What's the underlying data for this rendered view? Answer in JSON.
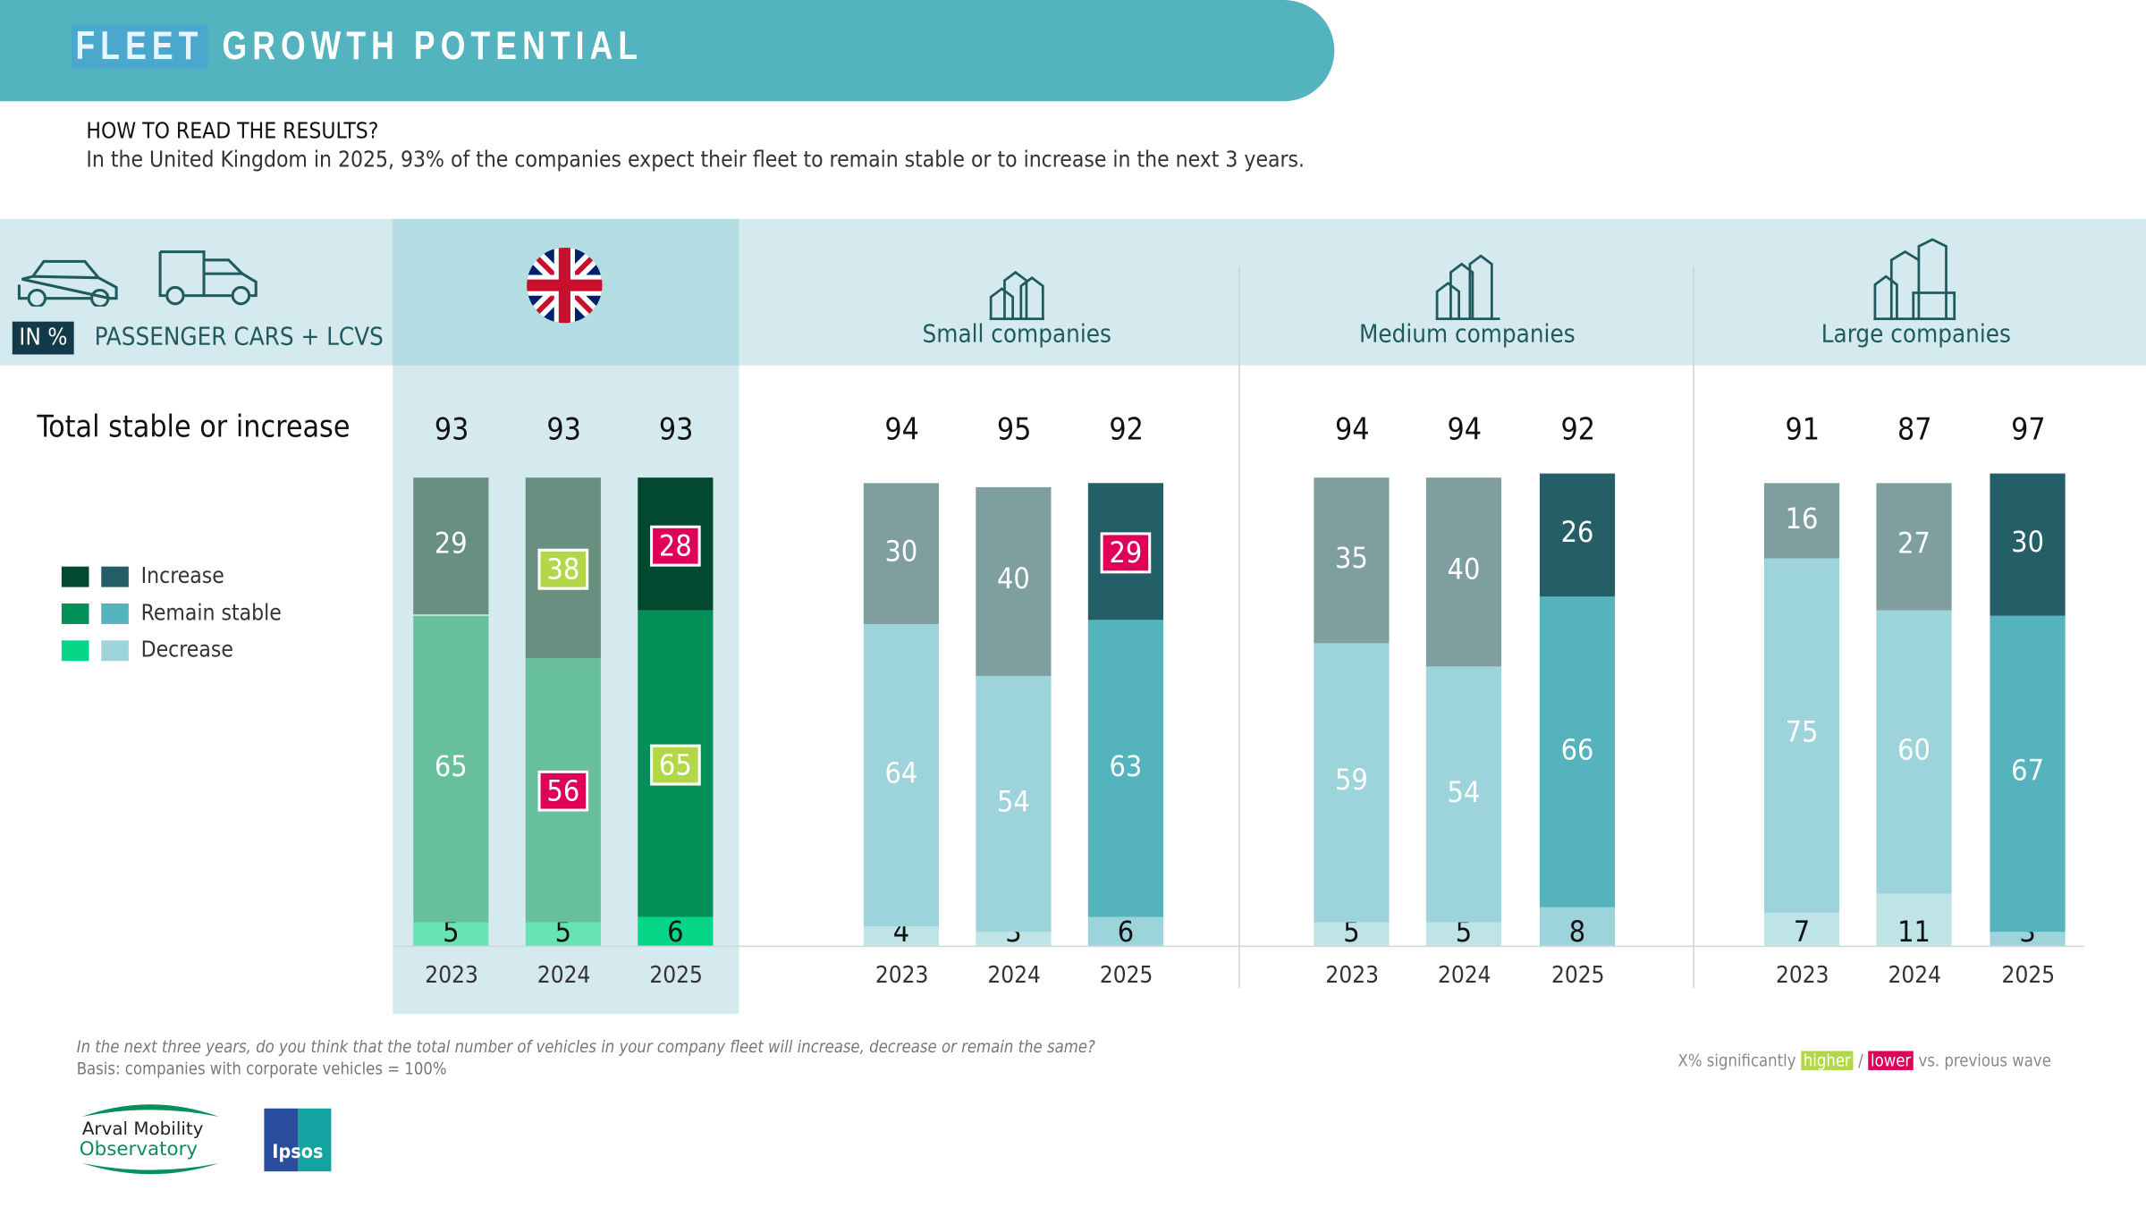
{
  "header": {
    "title_highlight": "FLEET",
    "title_rest": "GROWTH POTENTIAL"
  },
  "how_to_read": {
    "title": "HOW TO READ THE RESULTS?",
    "text": "In the United Kingdom in 2025, 93% of the companies expect their fleet to remain stable or to increase in the next 3 years."
  },
  "unit_badge": "IN %",
  "vehicle_label": "PASSENGER CARS + LCVS",
  "total_label": "Total stable or increase",
  "legend": [
    "Increase",
    "Remain stable",
    "Decrease"
  ],
  "colors": {
    "uk_prev": {
      "increase": "#688f80",
      "stable": "#68bf9d",
      "decrease": "#68e3b5"
    },
    "uk_current": {
      "increase": "#02492f",
      "stable": "#028f58",
      "decrease": "#04d586"
    },
    "co_prev": {
      "increase": "#7f9ea0",
      "stable": "#9dd3db",
      "decrease": "#bfe4e7"
    },
    "co_current": {
      "increase": "#245e66",
      "stable": "#55b3bd",
      "decrease": "#9dd3db"
    },
    "higher": "#b2d84a",
    "lower": "#e0005a"
  },
  "chart_data": {
    "type": "bar",
    "stacked": true,
    "categories": [
      "2023",
      "2024",
      "2025"
    ],
    "groups": [
      {
        "name": "",
        "icon": "uk-flag-icon",
        "palette": "uk",
        "totals": [
          93,
          93,
          93
        ],
        "increase": [
          29,
          38,
          28
        ],
        "stable": [
          65,
          56,
          65
        ],
        "decrease": [
          5,
          5,
          6
        ],
        "sig_increase": [
          "",
          "higher",
          "lower"
        ],
        "sig_stable": [
          "",
          "lower",
          "higher"
        ]
      },
      {
        "name": "Small companies",
        "icon": "small-buildings-icon",
        "palette": "co",
        "totals": [
          94,
          95,
          92
        ],
        "increase": [
          30,
          40,
          29
        ],
        "stable": [
          64,
          54,
          63
        ],
        "decrease": [
          4,
          3,
          6
        ],
        "sig_increase": [
          "",
          "",
          "lower"
        ],
        "sig_stable": [
          "",
          "",
          ""
        ]
      },
      {
        "name": "Medium companies",
        "icon": "medium-buildings-icon",
        "palette": "co",
        "totals": [
          94,
          94,
          92
        ],
        "increase": [
          35,
          40,
          26
        ],
        "stable": [
          59,
          54,
          66
        ],
        "decrease": [
          5,
          5,
          8
        ],
        "sig_increase": [
          "",
          "",
          ""
        ],
        "sig_stable": [
          "",
          "",
          ""
        ]
      },
      {
        "name": "Large companies",
        "icon": "large-buildings-icon",
        "palette": "co",
        "totals": [
          91,
          87,
          97
        ],
        "increase": [
          16,
          27,
          30
        ],
        "stable": [
          75,
          60,
          67
        ],
        "decrease": [
          7,
          11,
          3
        ],
        "sig_increase": [
          "",
          "",
          ""
        ],
        "sig_stable": [
          "",
          "",
          ""
        ]
      }
    ]
  },
  "footer": {
    "question": "In the next three years, do you think that the total number of vehicles in your company fleet will increase, decrease or remain the same?",
    "basis": "Basis: companies with corporate vehicles = 100%",
    "sig_prefix": "X% significantly",
    "sig_higher": "higher",
    "sig_sep": "/",
    "sig_lower": "lower",
    "sig_suffix": "vs. previous wave",
    "logo_arval": "Arval Mobility Observatory",
    "logo_ipsos": "Ipsos"
  }
}
